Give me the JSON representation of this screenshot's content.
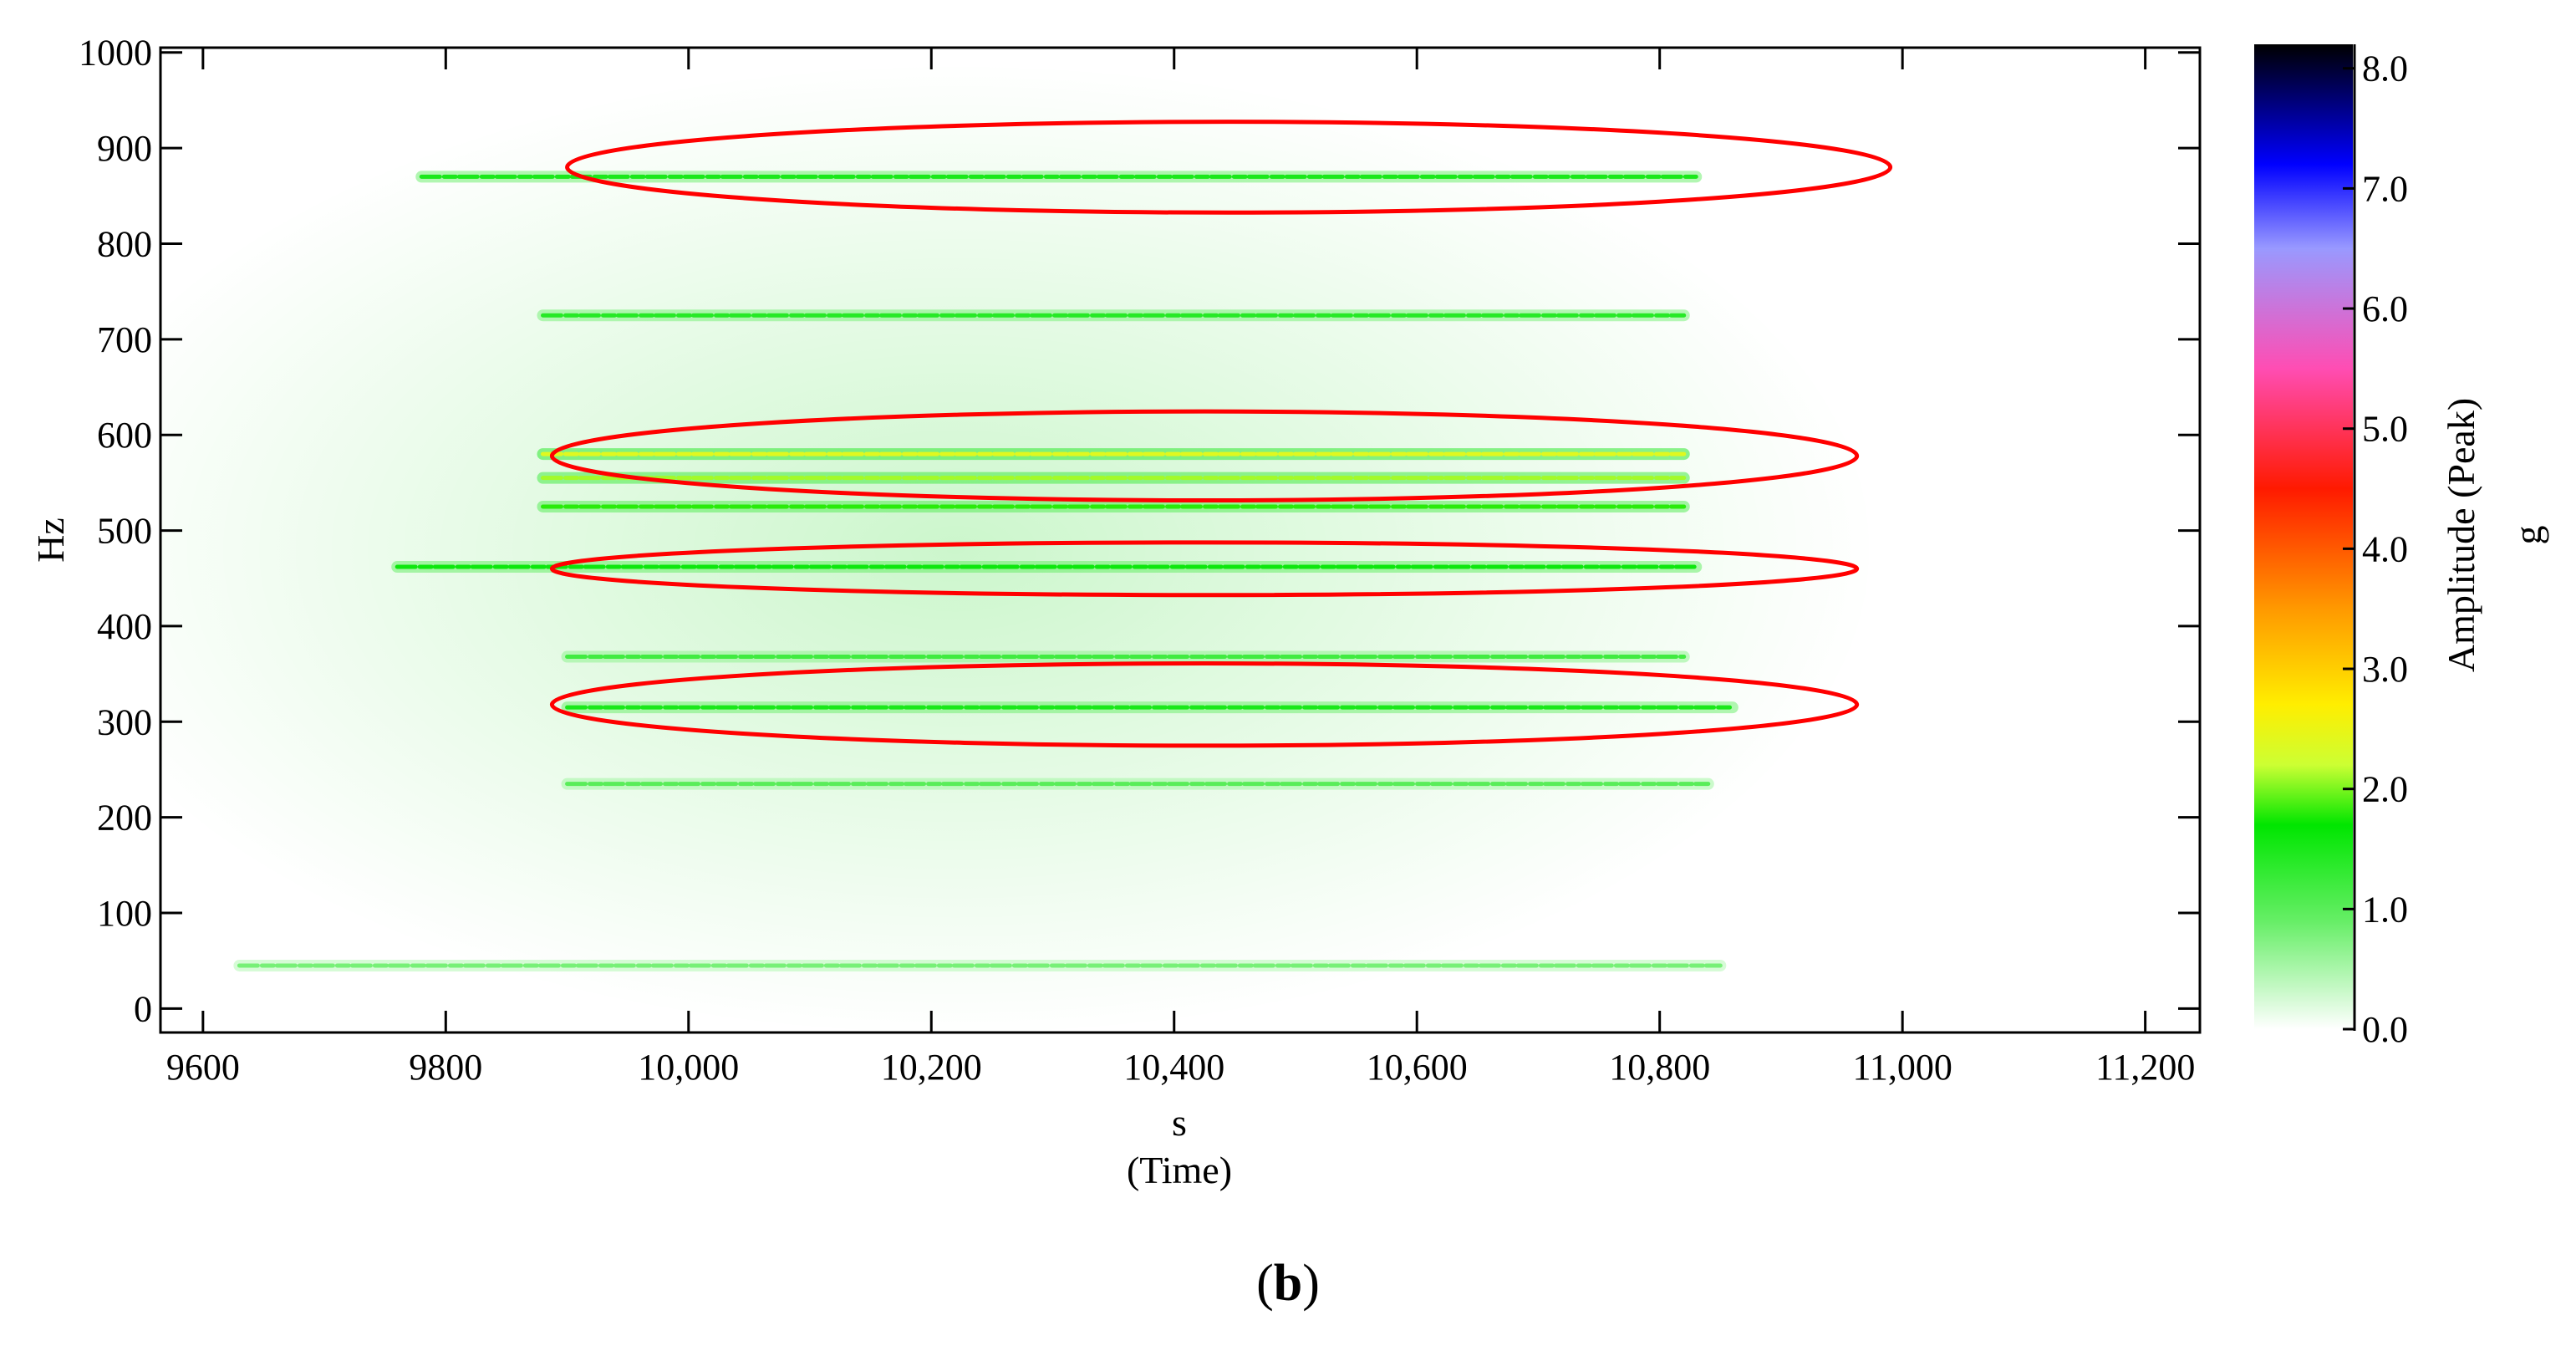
{
  "chart_data": {
    "type": "heatmap",
    "title": "",
    "xlabel": "s",
    "xlabel_sub": "(Time)",
    "ylabel": "Hz",
    "xlim": [
      9565,
      11245
    ],
    "ylim": [
      -25,
      1005
    ],
    "x_ticks": [
      {
        "value": 9600,
        "label": "9600"
      },
      {
        "value": 9800,
        "label": "9800"
      },
      {
        "value": 10000,
        "label": "10,000"
      },
      {
        "value": 10200,
        "label": "10,200"
      },
      {
        "value": 10400,
        "label": "10,400"
      },
      {
        "value": 10600,
        "label": "10,600"
      },
      {
        "value": 10800,
        "label": "10,800"
      },
      {
        "value": 11000,
        "label": "11,000"
      },
      {
        "value": 11200,
        "label": "11,200"
      }
    ],
    "y_ticks": [
      {
        "value": 0,
        "label": "0"
      },
      {
        "value": 100,
        "label": "100"
      },
      {
        "value": 200,
        "label": "200"
      },
      {
        "value": 300,
        "label": "300"
      },
      {
        "value": 400,
        "label": "400"
      },
      {
        "value": 500,
        "label": "500"
      },
      {
        "value": 600,
        "label": "600"
      },
      {
        "value": 700,
        "label": "700"
      },
      {
        "value": 800,
        "label": "800"
      },
      {
        "value": 900,
        "label": "900"
      },
      {
        "value": 1000,
        "label": "1000"
      }
    ],
    "colorbar": {
      "label": "Amplitude (Peak)",
      "unit": "g",
      "range": [
        0,
        8.2
      ],
      "ticks": [
        {
          "value": 0,
          "label": "0.0"
        },
        {
          "value": 1,
          "label": "1.0"
        },
        {
          "value": 2,
          "label": "2.0"
        },
        {
          "value": 3,
          "label": "3.0"
        },
        {
          "value": 4,
          "label": "4.0"
        },
        {
          "value": 5,
          "label": "5.0"
        },
        {
          "value": 6,
          "label": "6.0"
        },
        {
          "value": 7,
          "label": "7.0"
        },
        {
          "value": 8,
          "label": "8.0"
        }
      ],
      "stops": [
        {
          "value": 0.0,
          "color": "#ffffff"
        },
        {
          "value": 0.9,
          "color": "#66ee66"
        },
        {
          "value": 1.7,
          "color": "#00e600"
        },
        {
          "value": 2.2,
          "color": "#ccff33"
        },
        {
          "value": 2.7,
          "color": "#ffee00"
        },
        {
          "value": 3.5,
          "color": "#ff9900"
        },
        {
          "value": 4.5,
          "color": "#ff1a00"
        },
        {
          "value": 5.5,
          "color": "#ff4db3"
        },
        {
          "value": 6.5,
          "color": "#9999ff"
        },
        {
          "value": 7.2,
          "color": "#0000ff"
        },
        {
          "value": 8.2,
          "color": "#000000"
        }
      ]
    },
    "bands": [
      {
        "freq": 45,
        "t_start": 9630,
        "t_end": 10850,
        "amplitude": 0.8
      },
      {
        "freq": 870,
        "t_start": 9780,
        "t_end": 10830,
        "amplitude": 1.5
      },
      {
        "freq": 725,
        "t_start": 9880,
        "t_end": 10820,
        "amplitude": 1.4
      },
      {
        "freq": 580,
        "t_start": 9880,
        "t_end": 10820,
        "amplitude": 2.4
      },
      {
        "freq": 555,
        "t_start": 9880,
        "t_end": 10820,
        "amplitude": 2.1
      },
      {
        "freq": 525,
        "t_start": 9880,
        "t_end": 10820,
        "amplitude": 1.8
      },
      {
        "freq": 462,
        "t_start": 9760,
        "t_end": 10830,
        "amplitude": 1.6
      },
      {
        "freq": 368,
        "t_start": 9900,
        "t_end": 10820,
        "amplitude": 1.2
      },
      {
        "freq": 315,
        "t_start": 9900,
        "t_end": 10860,
        "amplitude": 1.5
      },
      {
        "freq": 235,
        "t_start": 9900,
        "t_end": 10840,
        "amplitude": 1.0
      }
    ],
    "annotations": [
      {
        "shape": "ellipse",
        "color": "#ff0000",
        "center_time": 10445,
        "center_freq": 880,
        "time_span": 1090,
        "freq_span": 95
      },
      {
        "shape": "ellipse",
        "color": "#ff0000",
        "center_time": 10425,
        "center_freq": 578,
        "time_span": 1075,
        "freq_span": 93
      },
      {
        "shape": "ellipse",
        "color": "#ff0000",
        "center_time": 10425,
        "center_freq": 460,
        "time_span": 1075,
        "freq_span": 55
      },
      {
        "shape": "ellipse",
        "color": "#ff0000",
        "center_time": 10425,
        "center_freq": 318,
        "time_span": 1075,
        "freq_span": 86
      }
    ]
  },
  "panel_label": {
    "open": "(",
    "letter": "b",
    "close": ")"
  }
}
